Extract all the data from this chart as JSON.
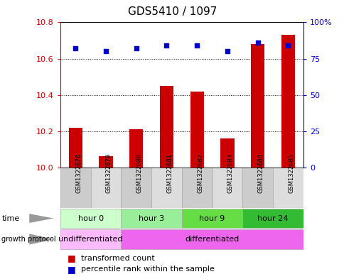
{
  "title": "GDS5410 / 1097",
  "samples": [
    "GSM1322678",
    "GSM1322679",
    "GSM1322680",
    "GSM1322681",
    "GSM1322682",
    "GSM1322683",
    "GSM1322684",
    "GSM1322685"
  ],
  "transformed_counts": [
    10.22,
    10.06,
    10.21,
    10.45,
    10.42,
    10.16,
    10.68,
    10.73
  ],
  "percentile_ranks": [
    82,
    80,
    82,
    84,
    84,
    80,
    86,
    84
  ],
  "ylim_left": [
    10.0,
    10.8
  ],
  "ylim_right": [
    0,
    100
  ],
  "yticks_left": [
    10.0,
    10.2,
    10.4,
    10.6,
    10.8
  ],
  "yticks_right": [
    0,
    25,
    50,
    75,
    100
  ],
  "ytick_labels_right": [
    "0",
    "25",
    "50",
    "75",
    "100%"
  ],
  "bar_color": "#cc0000",
  "dot_color": "#0000cc",
  "time_groups": [
    {
      "label": "hour 0",
      "start": 0,
      "end": 1,
      "color": "#ccffcc"
    },
    {
      "label": "hour 3",
      "start": 2,
      "end": 3,
      "color": "#99ee99"
    },
    {
      "label": "hour 9",
      "start": 4,
      "end": 5,
      "color": "#66dd44"
    },
    {
      "label": "hour 24",
      "start": 6,
      "end": 7,
      "color": "#33bb33"
    }
  ],
  "protocol_groups": [
    {
      "label": "undifferentiated",
      "start": 0,
      "end": 1,
      "color": "#ffbbff"
    },
    {
      "label": "differentiated",
      "start": 2,
      "end": 7,
      "color": "#ee66ee"
    }
  ],
  "sample_band_color": "#cccccc",
  "sample_band_alt_color": "#dddddd",
  "background_color": "#ffffff",
  "tick_color_left": "#cc0000",
  "tick_color_right": "#0000cc",
  "border_color": "#000000",
  "label_arrow_color": "#999999"
}
